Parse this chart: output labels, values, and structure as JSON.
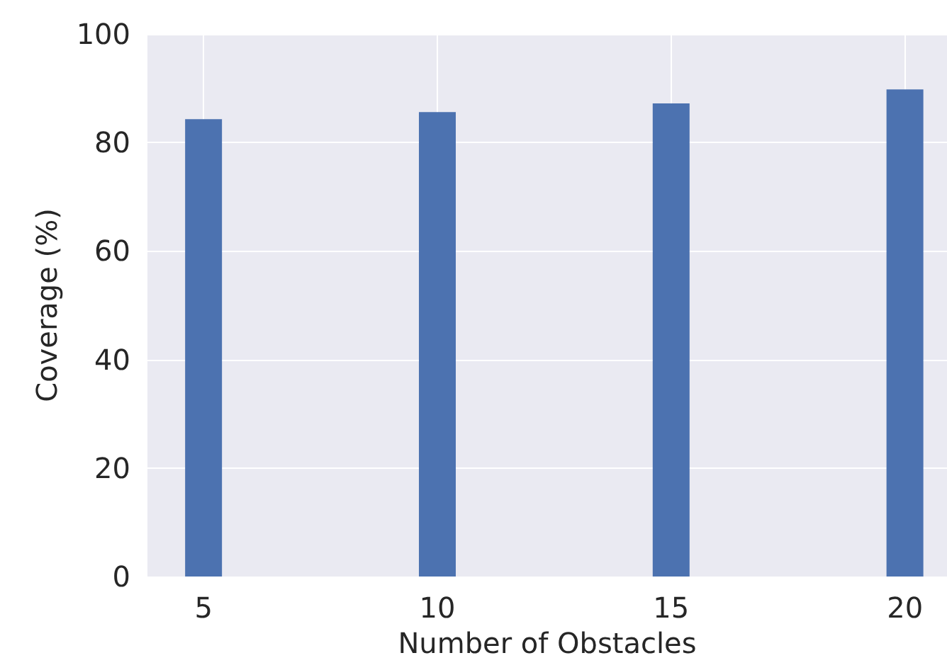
{
  "chart_data": {
    "type": "bar",
    "xlabel": "Number of Obstacles",
    "ylabel": "Coverage (%)",
    "x": [
      5,
      10,
      15,
      20
    ],
    "values": [
      84.3,
      85.6,
      87.2,
      89.8
    ],
    "color": "#4c72b0",
    "xlim": [
      3.8,
      20.9
    ],
    "xticks": [
      5,
      10,
      15,
      20
    ],
    "ylim": [
      0,
      100
    ],
    "yticks": [
      0,
      20,
      40,
      60,
      80,
      100
    ],
    "grid": true
  }
}
